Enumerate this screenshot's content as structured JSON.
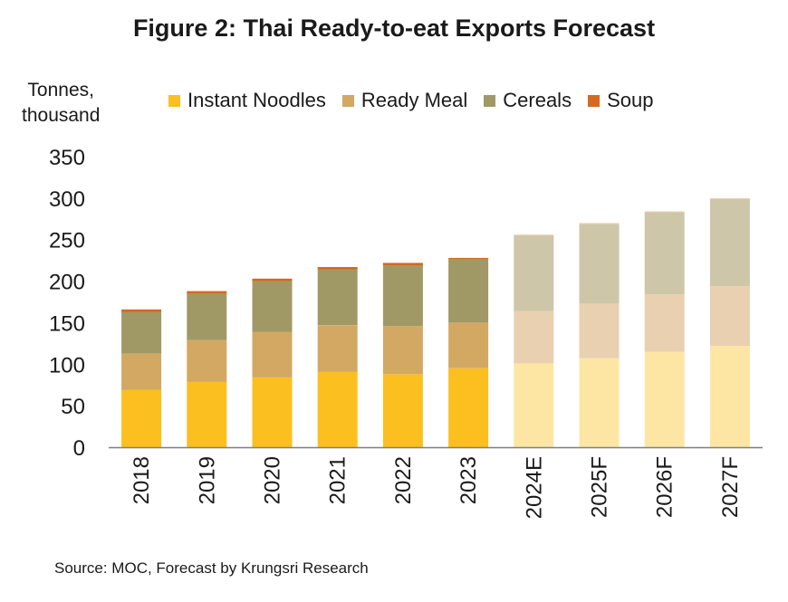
{
  "chart_data": {
    "type": "bar",
    "stacked": true,
    "title": "Figure 2: Thai Ready-to-eat Exports Forecast",
    "ylabel_lines": [
      "Tonnes,",
      "thousand"
    ],
    "xlabel": "",
    "categories": [
      "2018",
      "2019",
      "2020",
      "2021",
      "2022",
      "2023",
      "2024E",
      "2025F",
      "2026F",
      "2027F"
    ],
    "forecast_from_index": 6,
    "ylim": [
      0,
      350
    ],
    "yticks": [
      0,
      50,
      100,
      150,
      200,
      250,
      300,
      350
    ],
    "grid": false,
    "legend_position": "top",
    "series": [
      {
        "name": "Instant Noodles",
        "color": "#FBBF1F",
        "forecast_color": "#FDE6A4",
        "values": [
          69,
          79,
          84,
          91,
          88,
          95,
          101,
          107,
          115,
          122
        ]
      },
      {
        "name": "Ready Meal",
        "color": "#D2A863",
        "forecast_color": "#E8D0B0",
        "values": [
          44,
          50,
          55,
          56,
          58,
          55,
          63,
          66,
          69,
          72
        ]
      },
      {
        "name": "Cereals",
        "color": "#A09966",
        "forecast_color": "#CDC6A8",
        "values": [
          50,
          56,
          61,
          67,
          73,
          76,
          91,
          96,
          99,
          105
        ]
      },
      {
        "name": "Soup",
        "color": "#D5691F",
        "forecast_color": "#F1C8A6",
        "values": [
          3,
          3,
          3,
          3,
          3,
          2,
          1,
          1,
          1,
          1
        ]
      }
    ],
    "source": "Source: MOC, Forecast by Krungsri Research"
  }
}
